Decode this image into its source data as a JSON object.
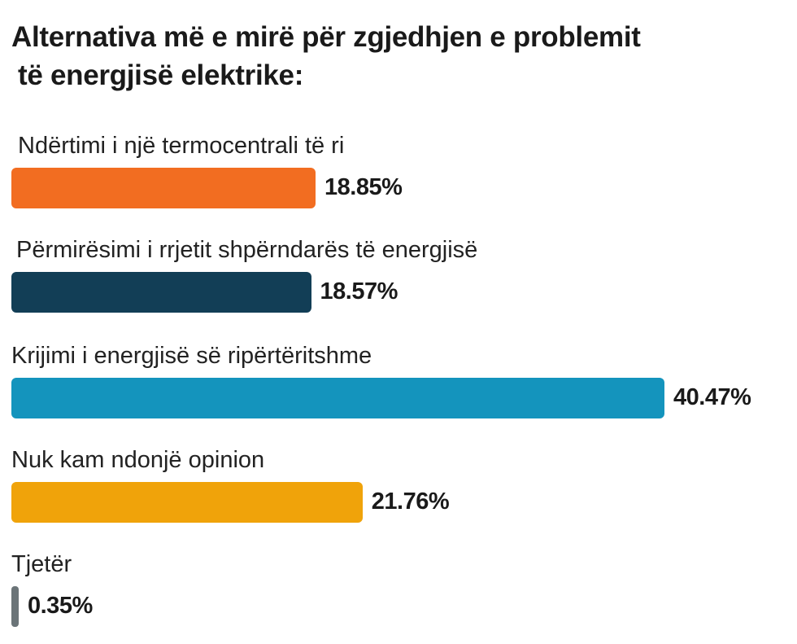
{
  "chart_data": {
    "type": "bar",
    "orientation": "horizontal",
    "title": [
      "Alternativa më e mirë për zgjedhjen e problemit",
      "të energjisë elektrike:"
    ],
    "categories": [
      "Ndërtimi i një termocentrali të ri",
      "Përmirësimi i rrjetit shpërndarës të energjisë",
      "Krijimi i energjisë së ripërtëritshme",
      "Nuk kam ndonjë opinion",
      "Tjetër"
    ],
    "values": [
      18.85,
      18.57,
      40.47,
      21.76,
      0.35
    ],
    "value_labels": [
      "18.85%",
      "18.57%",
      "40.47%",
      "21.76%",
      "0.35%"
    ],
    "colors": [
      "#f26d21",
      "#123e56",
      "#1494bd",
      "#f0a30a",
      "#6b7478"
    ],
    "unit": "%",
    "xlim": [
      0,
      40.47
    ],
    "grid": false,
    "legend": "none"
  }
}
